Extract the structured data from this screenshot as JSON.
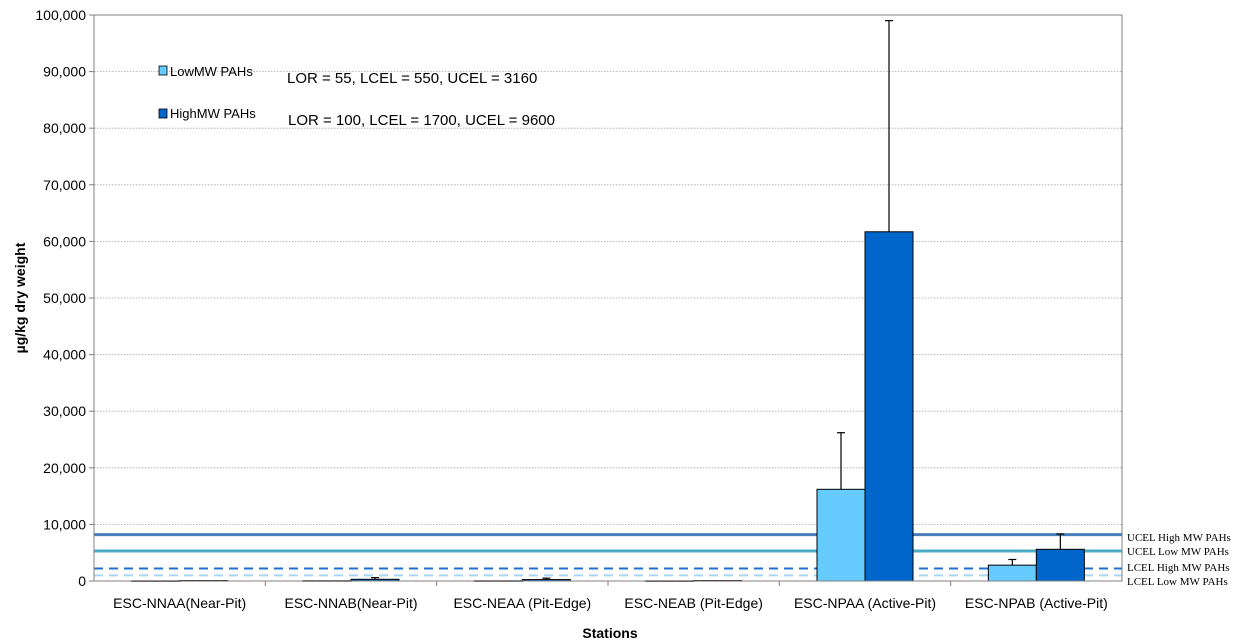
{
  "chart_data": {
    "type": "bar",
    "title": "",
    "xlabel": "Stations",
    "ylabel": "µg/kg dry weight",
    "ylim": [
      0,
      100000
    ],
    "yticks": [
      0,
      10000,
      20000,
      30000,
      40000,
      50000,
      60000,
      70000,
      80000,
      90000,
      100000
    ],
    "ytick_labels": [
      "0",
      "10,000",
      "20,000",
      "30,000",
      "40,000",
      "50,000",
      "60,000",
      "70,000",
      "80,000",
      "90,000",
      "100,000"
    ],
    "grid": true,
    "legend_position": "top-left",
    "categories": [
      "ESC-NNAA(Near-Pit)",
      "ESC-NNAB(Near-Pit)",
      "ESC-NEAA (Pit-Edge)",
      "ESC-NEAB (Pit-Edge)",
      "ESC-NPAA (Active-Pit)",
      "ESC-NPAB (Active-Pit)"
    ],
    "series": [
      {
        "name": "LowMW PAHs",
        "color": "#66CCFF",
        "values": [
          30,
          50,
          40,
          30,
          16200,
          2800
        ],
        "error_upper": [
          0,
          0,
          0,
          0,
          26200,
          3800
        ]
      },
      {
        "name": "HighMW PAHs",
        "color": "#0066CC",
        "values": [
          80,
          300,
          250,
          80,
          61700,
          5600
        ],
        "error_upper": [
          0,
          600,
          500,
          0,
          99000,
          8300
        ]
      }
    ],
    "annotations": [
      "LOR = 55, LCEL = 550, UCEL = 3160",
      "LOR = 100, LCEL = 1700, UCEL = 9600"
    ],
    "reference_lines": [
      {
        "label": "UCEL High MW PAHs",
        "value": 8200,
        "color": "#4A7EBB",
        "style": "solid"
      },
      {
        "label": "UCEL Low MW PAHs",
        "value": 5300,
        "color": "#4BACC6",
        "style": "solid"
      },
      {
        "label": "LCEL High MW PAHs",
        "value": 2200,
        "color": "#1F6FD0",
        "style": "dashed"
      },
      {
        "label": "LCEL Low MW PAHs",
        "value": 1000,
        "color": "#A9D6F5",
        "style": "dashed"
      }
    ]
  }
}
